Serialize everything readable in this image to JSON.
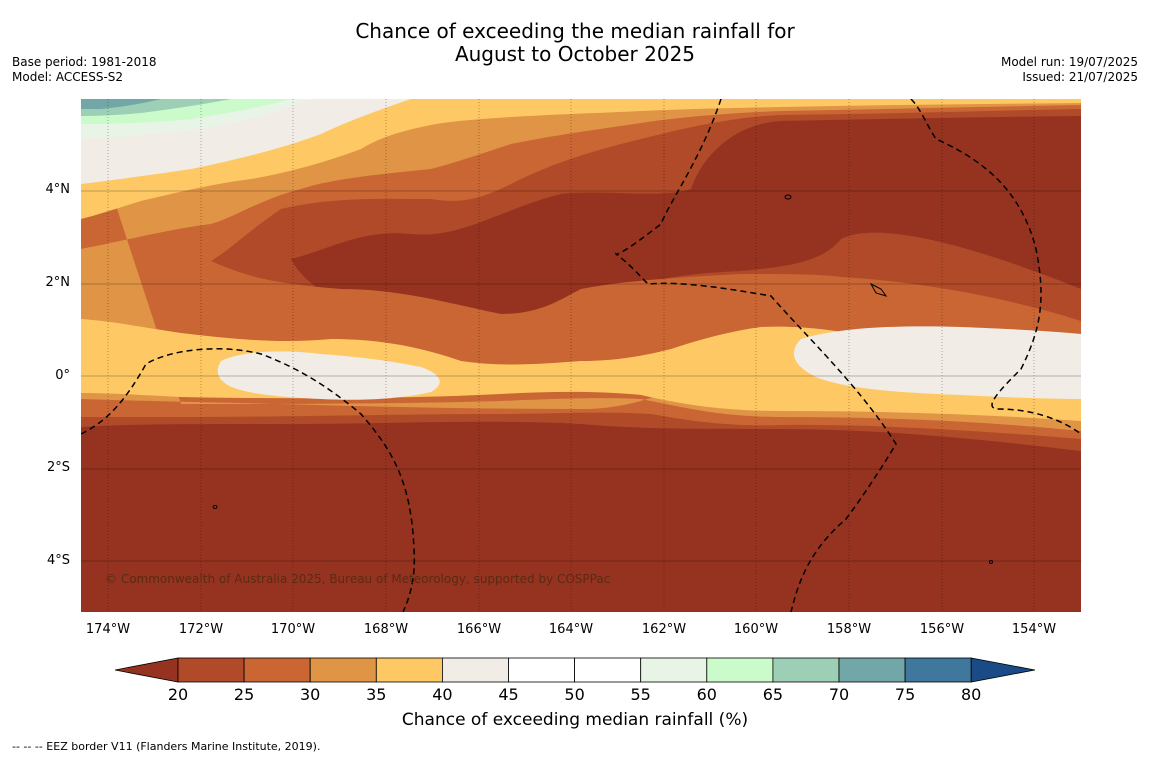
{
  "title_line1": "Chance of exceeding the median rainfall for",
  "title_line2": "August to October 2025",
  "base_period": "Base period: 1981-2018",
  "model": "Model: ACCESS-S2",
  "model_run": "Model run: 19/07/2025",
  "issued": "Issued: 21/07/2025",
  "copyright": "© Commonwealth of Australia 2025, Bureau of Meteorology, supported by COSPPac",
  "lat_labels": [
    "4°N",
    "2°N",
    "0°",
    "2°S",
    "4°S"
  ],
  "lon_labels": [
    "174°W",
    "172°W",
    "170°W",
    "168°W",
    "166°W",
    "164°W",
    "162°W",
    "160°W",
    "158°W",
    "156°W",
    "154°W"
  ],
  "colorbar": {
    "ticks": [
      "20",
      "25",
      "30",
      "35",
      "40",
      "45",
      "50",
      "55",
      "60",
      "65",
      "70",
      "75",
      "80"
    ],
    "colors": [
      "#963320",
      "#b04a28",
      "#c96634",
      "#e09446",
      "#fec964",
      "#f1ece6",
      "#ffffff",
      "#ffffff",
      "#e8f5e6",
      "#cbfacb",
      "#9ccfb6",
      "#72a7a8",
      "#3f789c",
      "#1a4b87"
    ],
    "label": "Chance of exceeding median rainfall (%)"
  },
  "footer": "--  --  -- EEZ border V11 (Flanders Marine Institute, 2019)."
}
